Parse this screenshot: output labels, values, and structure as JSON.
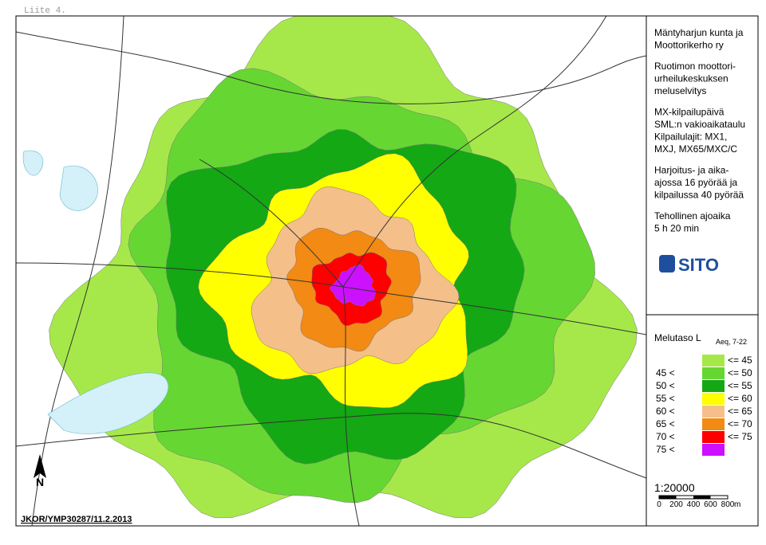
{
  "header_label": "Liite 4.",
  "info": {
    "paragraphs": [
      [
        "Mäntyharjun kunta ja",
        "Moottorikerho ry"
      ],
      [
        "Ruotimon moottori-",
        "urheilukeskuksen",
        "meluselvitys"
      ],
      [
        "MX-kilpailupäivä",
        "SML:n vakioaikataulu",
        "Kilpailulajit: MX1,",
        "MXJ, MX65/MXC/C"
      ],
      [
        "Harjoitus- ja aika-",
        "ajossa 16 pyörää ja",
        "kilpailussa 40 pyörää"
      ],
      [
        "Tehollinen ajoaika",
        "5 h 20 min"
      ]
    ],
    "logo": "SITO"
  },
  "legend": {
    "title": "Melutaso L",
    "title_subscript": "Aeq, 7-22",
    "items": [
      {
        "upper": "<= 45",
        "color": "#a6e84a"
      },
      {
        "lower": "45 <",
        "upper": "<= 50",
        "color": "#66d633"
      },
      {
        "lower": "50 <",
        "upper": "<= 55",
        "color": "#14a814"
      },
      {
        "lower": "55 <",
        "upper": "<= 60",
        "color": "#ffff00"
      },
      {
        "lower": "60 <",
        "upper": "<= 65",
        "color": "#f5bf8a"
      },
      {
        "lower": "65 <",
        "upper": "<= 70",
        "color": "#f28a14"
      },
      {
        "lower": "70 <",
        "upper": "<= 75",
        "color": "#ff0000"
      },
      {
        "lower": "75 <",
        "color": "#cc11ff"
      }
    ]
  },
  "scale": {
    "ratio": "1:20000",
    "ticks": [
      0,
      200,
      400,
      600,
      800
    ],
    "unit": "m"
  },
  "north": "N",
  "drawing_id": "JKOR/YMP30287/11.2.2013"
}
